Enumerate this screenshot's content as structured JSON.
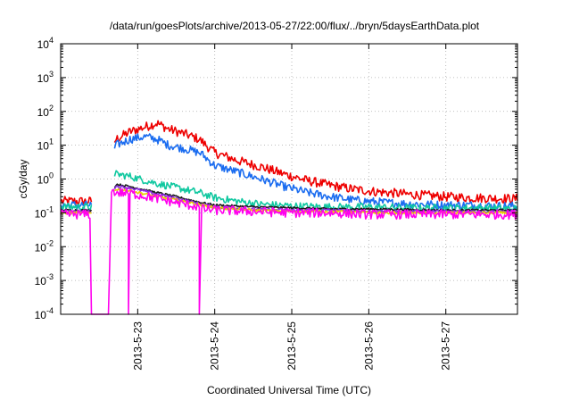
{
  "chart_data": {
    "type": "line",
    "title": "/data/run/goesPlots/archive/2013-05-27/22:00/flux/../bryn/5daysEarthData.plot",
    "xlabel": "Coordinated Universal Time (UTC)",
    "ylabel": "cGy/day",
    "yscale": "log",
    "ylim": [
      0.0001,
      10000
    ],
    "xlim_days": [
      22.0,
      27.93
    ],
    "x_unit": "day of May 2013",
    "grid": true,
    "legend": "none",
    "x_ticks": [
      {
        "x": 23,
        "label": "2013-5-23"
      },
      {
        "x": 24,
        "label": "2013-5-24"
      },
      {
        "x": 25,
        "label": "2013-5-25"
      },
      {
        "x": 26,
        "label": "2013-5-26"
      },
      {
        "x": 27,
        "label": "2013-5-27"
      }
    ],
    "y_ticks": [
      {
        "v": 0.0001,
        "base": "10",
        "exp": "-4"
      },
      {
        "v": 0.001,
        "base": "10",
        "exp": "-3"
      },
      {
        "v": 0.01,
        "base": "10",
        "exp": "-2"
      },
      {
        "v": 0.1,
        "base": "10",
        "exp": "-1"
      },
      {
        "v": 1,
        "base": "10",
        "exp": "0"
      },
      {
        "v": 10,
        "base": "10",
        "exp": "1"
      },
      {
        "v": 100,
        "base": "10",
        "exp": "2"
      },
      {
        "v": 1000,
        "base": "10",
        "exp": "3"
      },
      {
        "v": 10000,
        "base": "10",
        "exp": "4"
      }
    ],
    "series": [
      {
        "color": "#ee0000",
        "noise": 0.28,
        "x": [
          22.0,
          22.4,
          22.45,
          22.7,
          22.72,
          22.9,
          23.1,
          23.25,
          23.4,
          23.6,
          23.8,
          23.83,
          24.0,
          24.3,
          24.6,
          24.9,
          25.2,
          25.5,
          25.8,
          26.1,
          26.4,
          26.7,
          27.0,
          27.3,
          27.6,
          27.93
        ],
        "y": [
          0.22,
          0.22,
          null,
          12,
          15,
          25,
          35,
          45,
          30,
          22,
          15,
          13,
          6,
          3.5,
          2.3,
          1.4,
          0.9,
          0.65,
          0.5,
          0.42,
          0.37,
          0.33,
          0.3,
          0.28,
          0.27,
          0.26
        ]
      },
      {
        "color": "#1a6cf0",
        "noise": 0.25,
        "x": [
          22.0,
          22.4,
          22.45,
          22.7,
          22.72,
          22.9,
          23.1,
          23.25,
          23.4,
          23.6,
          23.8,
          23.83,
          24.0,
          24.3,
          24.6,
          24.9,
          25.2,
          25.5,
          25.8,
          26.1,
          26.4,
          26.7,
          27.0,
          27.3,
          27.6,
          27.93
        ],
        "y": [
          0.17,
          0.17,
          null,
          8,
          10,
          15,
          18,
          15,
          10,
          8,
          6,
          5.5,
          2.5,
          1.6,
          1.0,
          0.6,
          0.4,
          0.3,
          0.24,
          0.21,
          0.19,
          0.18,
          0.17,
          0.17,
          0.16,
          0.16
        ]
      },
      {
        "color": "#10c8a0",
        "noise": 0.22,
        "x": [
          22.0,
          22.4,
          22.45,
          22.7,
          22.72,
          22.9,
          23.1,
          23.3,
          23.6,
          23.83,
          24.0,
          24.3,
          24.6,
          25.0,
          25.5,
          26.0,
          26.5,
          27.0,
          27.5,
          27.93
        ],
        "y": [
          0.15,
          0.15,
          null,
          1.2,
          1.4,
          1.2,
          0.9,
          0.7,
          0.5,
          0.38,
          0.28,
          0.22,
          0.18,
          0.16,
          0.15,
          0.15,
          0.14,
          0.14,
          0.14,
          0.13
        ]
      },
      {
        "color": "#1a1a1a",
        "noise": 0.06,
        "x": [
          22.0,
          22.4,
          22.45,
          22.7,
          22.72,
          22.9,
          23.2,
          23.5,
          23.83,
          24.0,
          24.5,
          25.0,
          25.5,
          26.0,
          27.0,
          27.93
        ],
        "y": [
          0.12,
          0.12,
          null,
          0.55,
          0.7,
          0.6,
          0.42,
          0.3,
          0.2,
          0.17,
          0.15,
          0.14,
          0.13,
          0.13,
          0.12,
          0.12
        ]
      },
      {
        "color": "#8a2be2",
        "noise": 0.08,
        "x": [
          22.0,
          22.4,
          22.45,
          22.7,
          22.72,
          22.9,
          23.2,
          23.5,
          23.83,
          24.0,
          24.5,
          25.0,
          25.5,
          26.0,
          27.0,
          27.93
        ],
        "y": [
          0.11,
          0.11,
          null,
          0.5,
          0.6,
          0.55,
          0.38,
          0.27,
          0.18,
          0.15,
          0.13,
          0.12,
          0.12,
          0.11,
          0.11,
          0.11
        ]
      },
      {
        "color": "#e8d000",
        "noise": 0.08,
        "x": [
          22.0,
          22.4,
          22.45,
          22.7,
          22.72,
          22.9,
          23.2,
          23.5,
          23.83,
          24.0,
          24.5,
          25.0,
          25.5,
          26.0,
          27.0,
          27.93
        ],
        "y": [
          0.1,
          0.1,
          null,
          0.45,
          0.5,
          0.45,
          0.32,
          0.24,
          0.17,
          0.14,
          0.12,
          0.11,
          0.11,
          0.1,
          0.1,
          0.1
        ]
      },
      {
        "color": "#ff00ee",
        "noise": 0.28,
        "x": [
          22.0,
          22.38,
          22.4,
          22.62,
          22.62,
          22.66,
          22.7,
          22.72,
          22.88,
          22.88,
          22.9,
          23.2,
          23.5,
          23.8,
          23.8,
          23.83,
          24.0,
          24.5,
          25.0,
          25.5,
          26.0,
          26.5,
          27.0,
          27.5,
          27.93
        ],
        "y": [
          0.09,
          0.09,
          0.0001,
          0.0001,
          0.0001,
          0.4,
          0.42,
          0.4,
          0.38,
          0.0001,
          0.38,
          0.28,
          0.2,
          0.15,
          0.0001,
          0.13,
          0.12,
          0.11,
          0.1,
          0.1,
          0.09,
          0.09,
          0.09,
          0.09,
          0.09
        ]
      }
    ]
  }
}
